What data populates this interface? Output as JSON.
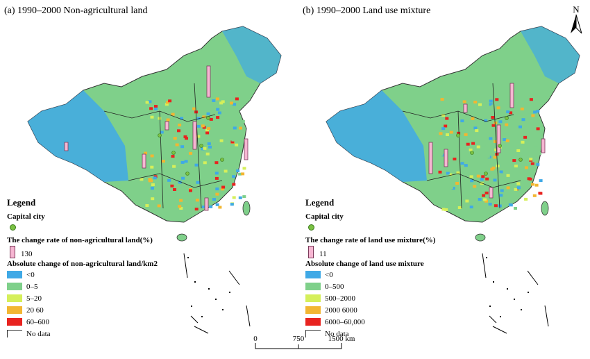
{
  "panels": [
    {
      "id": "a",
      "title": "(a) 1990–2000 Non-agricultural land",
      "legend": {
        "heading": "Legend",
        "capital_label": "Capital city",
        "rate_label": "The change rate of non-agricultural land(%)",
        "rate_value": "130",
        "absolute_label": "Absolute change of non-agricultural land/km2",
        "classes": [
          {
            "label": "<0",
            "color": "#3fa9e6"
          },
          {
            "label": "0–5",
            "color": "#7fd08a"
          },
          {
            "label": "5–20",
            "color": "#d5ef5a"
          },
          {
            "label": "20 60",
            "color": "#f2b632"
          },
          {
            "label": "60–600",
            "color": "#e8231f"
          }
        ],
        "nodata_label": "No data"
      }
    },
    {
      "id": "b",
      "title": "(b) 1990–2000 Land use mixture",
      "legend": {
        "heading": "Legend",
        "capital_label": "Capital city",
        "rate_label": "The change rate of land use mixture(%)",
        "rate_value": "11",
        "absolute_label": "Absolute change of land use mixture",
        "classes": [
          {
            "label": "<0",
            "color": "#3fa9e6"
          },
          {
            "label": "0–500",
            "color": "#7fd08a"
          },
          {
            "label": "500–2000",
            "color": "#d5ef5a"
          },
          {
            "label": "2000 6000",
            "color": "#f2b632"
          },
          {
            "label": "6000–60,000",
            "color": "#e8231f"
          }
        ],
        "nodata_label": "No data"
      }
    }
  ],
  "north_arrow": {
    "label": "N",
    "icon": "north-arrow-icon"
  },
  "scale_bar": {
    "labels": [
      "0",
      "750",
      "1500  km"
    ]
  }
}
